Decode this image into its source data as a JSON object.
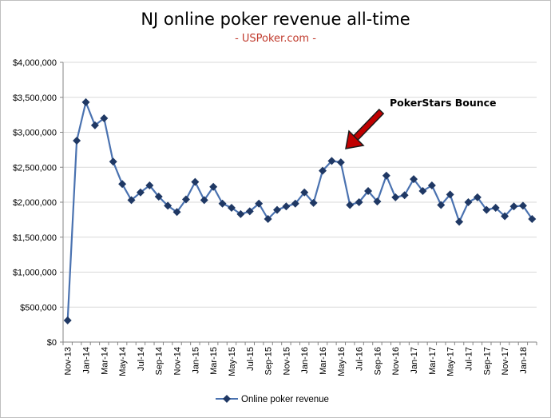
{
  "chart_data": {
    "type": "line",
    "title": "NJ online poker revenue all-time",
    "subtitle": "- USPoker.com -",
    "xlabel": "",
    "ylabel": "",
    "ylim": [
      0,
      4000000
    ],
    "yticks": [
      0,
      500000,
      1000000,
      1500000,
      2000000,
      2500000,
      3000000,
      3500000,
      4000000
    ],
    "ytick_labels": [
      "$0",
      "$500,000",
      "$1,000,000",
      "$1,500,000",
      "$2,000,000",
      "$2,500,000",
      "$3,000,000",
      "$3,500,000",
      "$4,000,000"
    ],
    "x": [
      "Nov-13",
      "Dec-13",
      "Jan-14",
      "Feb-14",
      "Mar-14",
      "Apr-14",
      "May-14",
      "Jun-14",
      "Jul-14",
      "Aug-14",
      "Sep-14",
      "Oct-14",
      "Nov-14",
      "Dec-14",
      "Jan-15",
      "Feb-15",
      "Mar-15",
      "Apr-15",
      "May-15",
      "Jun-15",
      "Jul-15",
      "Aug-15",
      "Sep-15",
      "Oct-15",
      "Nov-15",
      "Dec-15",
      "Jan-16",
      "Feb-16",
      "Mar-16",
      "Apr-16",
      "May-16",
      "Jun-16",
      "Jul-16",
      "Aug-16",
      "Sep-16",
      "Oct-16",
      "Nov-16",
      "Dec-16",
      "Jan-17",
      "Feb-17",
      "Mar-17",
      "Apr-17",
      "May-17",
      "Jun-17",
      "Jul-17",
      "Aug-17",
      "Sep-17",
      "Oct-17",
      "Nov-17",
      "Dec-17",
      "Jan-18",
      "Feb-18"
    ],
    "xtick_labels": [
      "Nov-13",
      "Jan-14",
      "Mar-14",
      "May-14",
      "Jul-14",
      "Sep-14",
      "Nov-14",
      "Jan-15",
      "Mar-15",
      "May-15",
      "Jul-15",
      "Sep-15",
      "Nov-15",
      "Jan-16",
      "Mar-16",
      "May-16",
      "Jul-16",
      "Sep-16",
      "Nov-16",
      "Jan-17",
      "Mar-17",
      "May-17",
      "Jul-17",
      "Sep-17",
      "Nov-17",
      "Jan-18"
    ],
    "series": [
      {
        "name": "Online poker revenue",
        "color": "#1f3864",
        "marker": "diamond",
        "values": [
          310000,
          2880000,
          3430000,
          3100000,
          3200000,
          2580000,
          2260000,
          2030000,
          2140000,
          2240000,
          2080000,
          1950000,
          1860000,
          2040000,
          2290000,
          2030000,
          2220000,
          1980000,
          1920000,
          1830000,
          1870000,
          1980000,
          1760000,
          1890000,
          1940000,
          1980000,
          2140000,
          1990000,
          2450000,
          2590000,
          2570000,
          1960000,
          2000000,
          2160000,
          2010000,
          2380000,
          2070000,
          2100000,
          2330000,
          2160000,
          2240000,
          1960000,
          2110000,
          1720000,
          2000000,
          2070000,
          1890000,
          1920000,
          1800000,
          1940000,
          1950000,
          1760000
        ]
      }
    ],
    "annotation": {
      "text": "PokerStars Bounce",
      "target": "May-16"
    },
    "legend": {
      "position": "bottom",
      "label": "Online poker revenue"
    },
    "grid": true
  }
}
